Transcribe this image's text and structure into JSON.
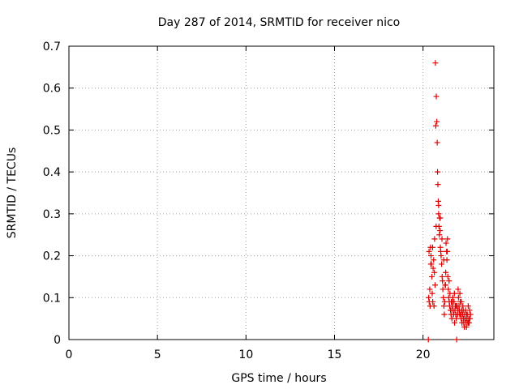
{
  "colors": {
    "series": "#e00000",
    "grid": "#a0a0a0",
    "frame": "#000000"
  },
  "chart_data": {
    "type": "scatter",
    "title": "Day 287 of 2014, SRMTID for receiver nico",
    "xlabel": "GPS time / hours",
    "ylabel": "SRMTID / TECUs",
    "xlim": [
      0,
      24
    ],
    "ylim": [
      0,
      0.7
    ],
    "xticks": [
      0,
      5,
      10,
      15,
      20
    ],
    "yticks": [
      0,
      0.1,
      0.2,
      0.3,
      0.4,
      0.5,
      0.6,
      0.7
    ],
    "xtick_labels": [
      "0",
      "5",
      "10",
      "15",
      "20"
    ],
    "ytick_labels": [
      "0",
      "0.1",
      "0.2",
      "0.3",
      "0.4",
      "0.5",
      "0.6",
      "0.7"
    ],
    "grid": true,
    "marker": "plus",
    "series": [
      {
        "name": "SRMTID",
        "x": [
          20.3,
          20.32,
          20.35,
          20.38,
          20.4,
          20.42,
          20.45,
          20.47,
          20.5,
          20.52,
          20.55,
          20.57,
          20.6,
          20.62,
          20.65,
          20.68,
          20.7,
          20.72,
          20.75,
          20.78,
          20.8,
          20.82,
          20.84,
          20.86,
          20.88,
          20.9,
          20.92,
          20.94,
          20.96,
          20.98,
          21.0,
          21.02,
          21.05,
          21.08,
          21.1,
          21.12,
          21.15,
          21.18,
          21.2,
          21.22,
          21.25,
          21.28,
          21.3,
          21.33,
          21.35,
          21.38,
          21.4,
          21.43,
          21.45,
          21.48,
          21.5,
          21.52,
          21.55,
          21.58,
          21.6,
          21.63,
          21.65,
          21.68,
          21.7,
          21.73,
          21.75,
          21.78,
          21.8,
          21.83,
          21.85,
          21.88,
          21.9,
          21.93,
          21.95,
          21.98,
          22.0,
          22.03,
          22.05,
          22.08,
          22.1,
          22.13,
          22.15,
          22.18,
          22.2,
          22.23,
          22.25,
          22.28,
          22.3,
          22.33,
          22.35,
          22.38,
          22.4,
          22.43,
          22.45,
          22.48,
          22.5,
          22.53,
          22.55,
          22.58,
          22.6,
          22.63,
          22.65,
          22.68,
          20.34,
          20.44,
          20.54,
          20.64,
          20.74,
          20.88,
          20.97,
          21.07,
          21.17,
          21.27,
          21.37,
          21.47,
          21.57,
          21.67,
          21.77,
          21.87,
          21.97,
          22.07,
          22.17,
          22.27,
          22.37,
          22.47,
          22.57
        ],
        "y": [
          0.0,
          0.1,
          0.09,
          0.12,
          0.08,
          0.22,
          0.2,
          0.18,
          0.15,
          0.11,
          0.09,
          0.17,
          0.19,
          0.08,
          0.24,
          0.13,
          0.66,
          0.51,
          0.58,
          0.52,
          0.47,
          0.4,
          0.37,
          0.33,
          0.3,
          0.27,
          0.25,
          0.29,
          0.26,
          0.22,
          0.21,
          0.2,
          0.18,
          0.15,
          0.14,
          0.12,
          0.1,
          0.08,
          0.06,
          0.09,
          0.13,
          0.16,
          0.23,
          0.21,
          0.19,
          0.24,
          0.15,
          0.12,
          0.1,
          0.09,
          0.08,
          0.11,
          0.07,
          0.06,
          0.09,
          0.05,
          0.08,
          0.1,
          0.07,
          0.06,
          0.09,
          0.04,
          0.07,
          0.08,
          0.06,
          0.05,
          0.0,
          0.08,
          0.06,
          0.12,
          0.1,
          0.08,
          0.07,
          0.11,
          0.09,
          0.06,
          0.05,
          0.07,
          0.04,
          0.06,
          0.08,
          0.05,
          0.04,
          0.03,
          0.06,
          0.05,
          0.07,
          0.04,
          0.03,
          0.05,
          0.06,
          0.04,
          0.08,
          0.05,
          0.04,
          0.07,
          0.05,
          0.06,
          0.21,
          0.18,
          0.22,
          0.16,
          0.27,
          0.32,
          0.29,
          0.24,
          0.19,
          0.13,
          0.21,
          0.14,
          0.07,
          0.09,
          0.11,
          0.08,
          0.07,
          0.06,
          0.09,
          0.07,
          0.05,
          0.06,
          0.04
        ]
      }
    ]
  }
}
